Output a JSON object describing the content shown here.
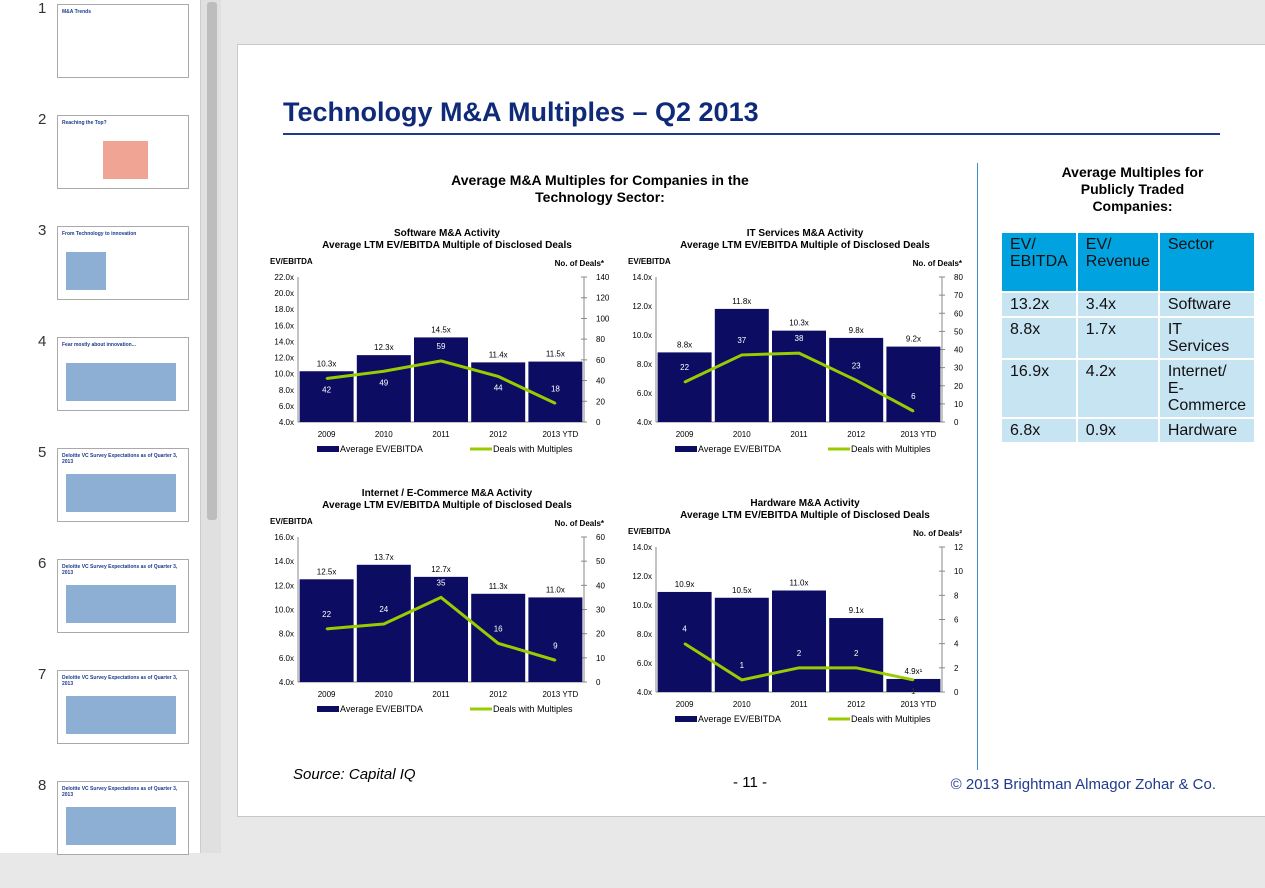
{
  "sidebar": {
    "slides": [
      {
        "num": "1",
        "title": "M&A Trends"
      },
      {
        "num": "2",
        "title": "Reaching the Top?"
      },
      {
        "num": "3",
        "title": "From Technology to innovation"
      },
      {
        "num": "4",
        "title": "Fear mostly about innovation..."
      },
      {
        "num": "5",
        "title": "Deloitte VC Survey Expectations as of Quarter 3, 2013"
      },
      {
        "num": "6",
        "title": "Deloitte VC Survey Expectations as of Quarter 3, 2013"
      },
      {
        "num": "7",
        "title": "Deloitte VC Survey Expectations as of Quarter 3, 2013"
      },
      {
        "num": "8",
        "title": "Deloitte VC Survey Expectations as of Quarter 3, 2013"
      }
    ]
  },
  "slide": {
    "title": "Technology M&A Multiples – Q2 2013",
    "subtitle": "Average M&A Multiples for Companies in the Technology Sector:",
    "right_title": "Average Multiples for Publicly Traded Companies:",
    "table": {
      "headers": [
        "EV/ EBITDA",
        "EV/ Revenue",
        "Sector"
      ],
      "rows": [
        [
          "13.2x",
          "3.4x",
          "Software"
        ],
        [
          "8.8x",
          "1.7x",
          "IT Services"
        ],
        [
          "16.9x",
          "4.2x",
          "Internet/ E-Commerce"
        ],
        [
          "6.8x",
          "0.9x",
          "Hardware"
        ]
      ]
    },
    "source": "Source: Capital IQ",
    "page_number": "- 11 -",
    "copyright": "© 2013 Brightman Almagor Zohar & Co."
  },
  "colors": {
    "bar": "#0c0c62",
    "line": "#99cc00",
    "title": "#0f2a78",
    "table_header": "#00a3e0",
    "table_cell": "#c7e4f3"
  },
  "chart_data": [
    {
      "type": "bar+line",
      "title": "Software M&A Activity",
      "subtitle": "Average LTM EV/EBITDA Multiple of Disclosed Deals",
      "ylabel": "EV/EBITDA",
      "y2label": "No. of Deals*",
      "categories": [
        "2009",
        "2010",
        "2011",
        "2012",
        "2013 YTD"
      ],
      "ylim": [
        4,
        22
      ],
      "ystep": 2,
      "y2lim": [
        0,
        140
      ],
      "y2step": 20,
      "series": [
        {
          "name": "Average EV/EBITDA",
          "type": "bar",
          "values": [
            10.3,
            12.3,
            14.5,
            11.4,
            11.5
          ],
          "labels": [
            "10.3x",
            "12.3x",
            "14.5x",
            "11.4x",
            "11.5x"
          ]
        },
        {
          "name": "Deals with Multiples",
          "type": "line",
          "axis": "right",
          "values": [
            42,
            49,
            59,
            44,
            18
          ]
        }
      ]
    },
    {
      "type": "bar+line",
      "title": "IT Services M&A Activity",
      "subtitle": "Average LTM EV/EBITDA Multiple of Disclosed Deals",
      "ylabel": "EV/EBITDA",
      "y2label": "No. of Deals*",
      "categories": [
        "2009",
        "2010",
        "2011",
        "2012",
        "2013 YTD"
      ],
      "ylim": [
        4,
        14
      ],
      "ystep": 2,
      "y2lim": [
        0,
        80
      ],
      "y2step": 10,
      "series": [
        {
          "name": "Average EV/EBITDA",
          "type": "bar",
          "values": [
            8.8,
            11.8,
            10.3,
            9.8,
            9.2
          ],
          "labels": [
            "8.8x",
            "11.8x",
            "10.3x",
            "9.8x",
            "9.2x"
          ]
        },
        {
          "name": "Deals with Multiples",
          "type": "line",
          "axis": "right",
          "values": [
            22,
            37,
            38,
            23,
            6
          ]
        }
      ]
    },
    {
      "type": "bar+line",
      "title": "Internet / E-Commerce M&A Activity",
      "subtitle": "Average LTM EV/EBITDA Multiple of Disclosed Deals",
      "ylabel": "EV/EBITDA",
      "y2label": "No. of Deals*",
      "categories": [
        "2009",
        "2010",
        "2011",
        "2012",
        "2013 YTD"
      ],
      "ylim": [
        4,
        16
      ],
      "ystep": 2,
      "y2lim": [
        0,
        60
      ],
      "y2step": 10,
      "series": [
        {
          "name": "Average EV/EBITDA",
          "type": "bar",
          "values": [
            12.5,
            13.7,
            12.7,
            11.3,
            11.0
          ],
          "labels": [
            "12.5x",
            "13.7x",
            "12.7x",
            "11.3x",
            "11.0x"
          ]
        },
        {
          "name": "Deals with Multiples",
          "type": "line",
          "axis": "right",
          "values": [
            22,
            24,
            35,
            16,
            9
          ]
        }
      ]
    },
    {
      "type": "bar+line",
      "title": "Hardware M&A Activity",
      "subtitle": "Average LTM EV/EBITDA Multiple of Disclosed Deals",
      "ylabel": "EV/EBITDA",
      "y2label": "No. of Deals²",
      "categories": [
        "2009",
        "2010",
        "2011",
        "2012",
        "2013 YTD"
      ],
      "ylim": [
        4,
        14
      ],
      "ystep": 2,
      "y2lim": [
        0,
        12
      ],
      "y2step": 2,
      "series": [
        {
          "name": "Average EV/EBITDA",
          "type": "bar",
          "values": [
            10.9,
            10.5,
            11.0,
            9.1,
            4.9
          ],
          "labels": [
            "10.9x",
            "10.5x",
            "11.0x",
            "9.1x",
            "4.9x¹"
          ]
        },
        {
          "name": "Deals with Multiples",
          "type": "line",
          "axis": "right",
          "values": [
            4,
            1,
            2,
            2,
            1
          ]
        }
      ]
    }
  ]
}
